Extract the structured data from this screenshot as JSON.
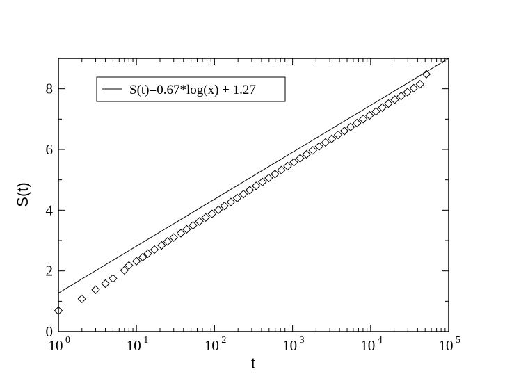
{
  "chart_data": {
    "type": "scatter",
    "xlabel": "t",
    "ylabel": "S(t)",
    "xscale": "log",
    "xlim": [
      1,
      100000
    ],
    "ylim": [
      0,
      9
    ],
    "grid": false,
    "legend_position": "top-left",
    "x_ticks": [
      {
        "base": "10",
        "exp": "0"
      },
      {
        "base": "10",
        "exp": "1"
      },
      {
        "base": "10",
        "exp": "2"
      },
      {
        "base": "10",
        "exp": "3"
      },
      {
        "base": "10",
        "exp": "4"
      },
      {
        "base": "10",
        "exp": "5"
      }
    ],
    "y_ticks": [
      "0",
      "2",
      "4",
      "6",
      "8"
    ],
    "fit_line": {
      "label": "S(t)=0.67*log(x) + 1.27",
      "points": [
        [
          1,
          1.27
        ],
        [
          100000,
          9.0
        ]
      ]
    },
    "series": [
      {
        "marker": "diamond",
        "x": [
          1,
          2,
          3,
          4,
          5,
          7,
          8,
          10,
          12,
          14,
          17,
          21,
          25,
          30,
          37,
          44,
          53,
          64,
          77,
          93,
          112,
          134,
          162,
          195,
          235,
          283,
          341,
          411,
          495,
          596,
          718,
          864,
          1040,
          1250,
          1510,
          1820,
          2190,
          2640,
          3180,
          3830,
          4610,
          5550,
          6690,
          8050,
          9700,
          11700,
          14100,
          16900,
          20400,
          24600,
          29600,
          35700,
          43000,
          51800
        ],
        "y": [
          0.69,
          1.08,
          1.38,
          1.58,
          1.75,
          2.02,
          2.18,
          2.32,
          2.45,
          2.57,
          2.7,
          2.84,
          2.97,
          3.1,
          3.24,
          3.37,
          3.5,
          3.63,
          3.76,
          3.88,
          4.01,
          4.14,
          4.27,
          4.4,
          4.53,
          4.66,
          4.8,
          4.93,
          5.06,
          5.19,
          5.32,
          5.45,
          5.58,
          5.71,
          5.84,
          5.97,
          6.1,
          6.23,
          6.35,
          6.48,
          6.61,
          6.74,
          6.87,
          7.0,
          7.12,
          7.25,
          7.38,
          7.51,
          7.64,
          7.76,
          7.89,
          8.02,
          8.15,
          8.48
        ]
      }
    ]
  }
}
